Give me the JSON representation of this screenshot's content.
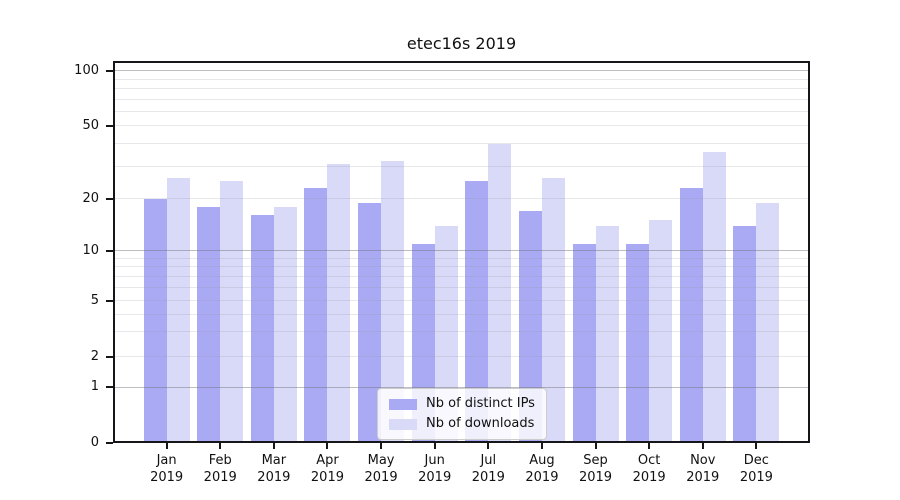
{
  "title": "etec16s 2019",
  "chart_data": {
    "type": "bar",
    "title": "etec16s 2019",
    "categories": [
      "Jan 2019",
      "Feb 2019",
      "Mar 2019",
      "Apr 2019",
      "May 2019",
      "Jun 2019",
      "Jul 2019",
      "Aug 2019",
      "Sep 2019",
      "Oct 2019",
      "Nov 2019",
      "Dec 2019"
    ],
    "series": [
      {
        "name": "Nb of distinct IPs",
        "color": "#a9a9f4",
        "values": [
          20,
          18,
          16,
          23,
          19,
          11,
          25,
          17,
          11,
          11,
          23,
          14
        ]
      },
      {
        "name": "Nb of downloads",
        "color": "#d9d9f8",
        "values": [
          26,
          25,
          18,
          31,
          32,
          14,
          40,
          26,
          14,
          15,
          36,
          19
        ]
      }
    ],
    "xlabel": "",
    "ylabel": "",
    "yscale": "log-like (symlog with 0 baseline)",
    "yticks": [
      100,
      50,
      20,
      10,
      5,
      2,
      1,
      0
    ],
    "gridlines": {
      "major": [
        1,
        10,
        100
      ],
      "minor": [
        2,
        3,
        4,
        5,
        6,
        7,
        8,
        9,
        20,
        30,
        40,
        50,
        60,
        70,
        80,
        90
      ]
    },
    "grid": "horizontal major+minor, drawn over bars",
    "legend_position": "lower center inside plot",
    "bar_grouping": "pairs per month, distinct-IPs left of tick, downloads right of tick"
  },
  "colors": {
    "distinct_ips_bar": "#a9a9f4",
    "downloads_bar": "#d9d9f8",
    "spine": "#15151a",
    "grid_major": "#c9c9c9",
    "grid_minor": "#ececec",
    "background": "#ffffff"
  }
}
